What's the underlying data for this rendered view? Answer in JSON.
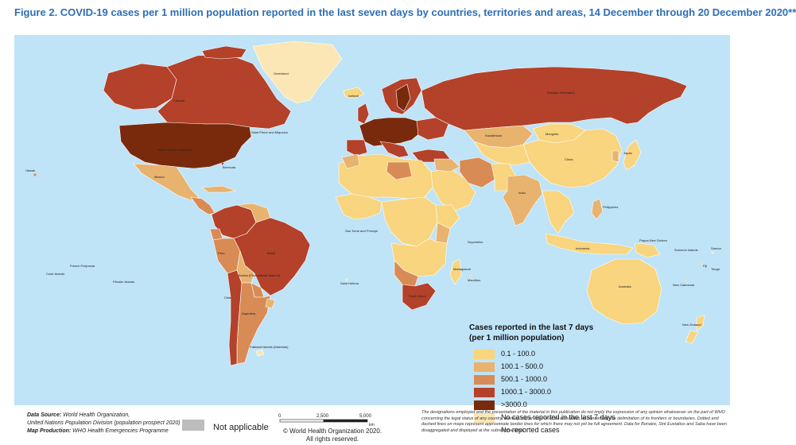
{
  "title": "Figure 2. COVID-19 cases per 1 million population reported in the last seven days by countries, territories and areas, 14 December through 20 December 2020**",
  "legend": {
    "title_line1": "Cases reported in the last 7 days",
    "title_line2": "(per 1 million population)",
    "items": [
      {
        "label": "0.1 - 100.0",
        "color": "#f8d57e"
      },
      {
        "label": "100.1 - 500.0",
        "color": "#e8b36f"
      },
      {
        "label": "500.1 - 1000.0",
        "color": "#d98b55"
      },
      {
        "label": "1000.1 - 3000.0",
        "color": "#b4412a"
      },
      {
        "label": ">3000.0",
        "color": "#7a2a0c"
      },
      {
        "label": "No cases reported in the last 7 days",
        "color": "#fbe7b5"
      },
      {
        "label": "No reported cases",
        "color": "#ffffff"
      }
    ]
  },
  "not_applicable": {
    "label": "Not applicable",
    "color": "#bdbdbd"
  },
  "footer": {
    "data_source_label": "Data Source:",
    "data_source": "World Health Organization,",
    "data_source_2": "United Nations Population Division (population prospect 2020)",
    "map_production_label": "Map Production:",
    "map_production": "WHO Health Emergencies Programme",
    "scale_0": "0",
    "scale_1": "2,500",
    "scale_2": "5,000",
    "scale_unit": "km",
    "credit_1": "© World Health Organization  2020.",
    "credit_2": "All rights reserved.",
    "disclaimer": "The designations employed and the presentation of the material in this publication do not imply the expression of any opinion whatsoever on the part of WHO concerning the legal status of any country, territory, city or area or of its authorities, or concerning the delimitation of its frontiers or boundaries. Dotted and dashed lines on maps represent approximate border lines for which there may not yet be full agreement. Data for Bonaire, Sint Eustatius and Saba have been disaggregated and displayed at the subnational level."
  },
  "colors": {
    "ocean": "#bfe3f7",
    "border": "#ffffff"
  },
  "map_labels": {
    "greenland": "Greenland",
    "canada": "Canada",
    "usa": "United States of America",
    "mexico": "Mexico",
    "brazil": "Brazil",
    "russia": "Russian Federation",
    "china": "China",
    "india": "India",
    "australia": "Australia",
    "new_zealand": "New Zealand",
    "indonesia": "Indonesia",
    "south_africa": "South Africa",
    "falkland": "Falkland Islands (Malvinas)",
    "saint_pierre": "Saint Pierre and Miquelon",
    "bermuda": "Bermuda",
    "hawaii": "Hawaii",
    "pitcairn": "Pitcairn Islands",
    "french_polynesia": "French Polynesia",
    "cook_islands": "Cook Islands",
    "iceland": "Iceland",
    "kazakhstan": "Kazakhstan",
    "mongolia": "Mongolia",
    "japan": "Japan",
    "philippines": "Philippines",
    "papua_new_guinea": "Papua New Guinea",
    "solomon": "Solomon Islands",
    "fiji": "Fiji",
    "new_caledonia": "New Caledonia",
    "samoa": "Samoa",
    "tonga": "Tonga",
    "saint_helena": "Saint Helena",
    "sao_tome": "Sao Tome and Principe",
    "madagascar": "Madagascar",
    "mauritius": "Mauritius",
    "seychelles": "Seychelles",
    "peru": "Peru",
    "argentina": "Argentina",
    "chile": "Chile",
    "bolivia": "Bolivia (Plurinational State of)"
  }
}
